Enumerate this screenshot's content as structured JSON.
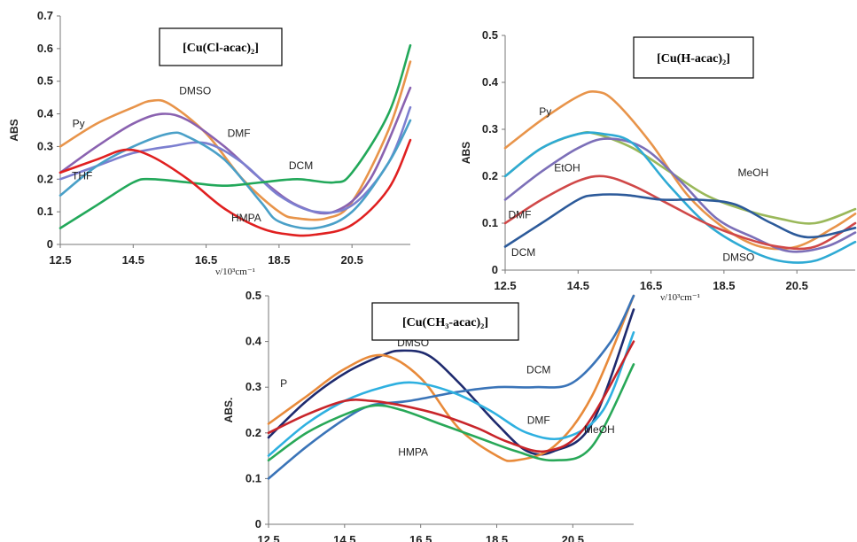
{
  "chart_data": [
    {
      "type": "line",
      "title": "[Cu(Cl-acac)₂]",
      "xlabel": "ν/10³cm⁻¹",
      "ylabel": "ABS",
      "xlim": [
        12.5,
        22.1
      ],
      "ylim": [
        0,
        0.7
      ],
      "xticks": [
        "12.5",
        "14.5",
        "16.5",
        "18.5",
        "20.5"
      ],
      "yticks": [
        "0",
        "0.1",
        "0.2",
        "0.3",
        "0.4",
        "0.5",
        "0.6",
        "0.7"
      ],
      "grid": false,
      "series": [
        {
          "name": "Py",
          "color": "#e8944a",
          "points": [
            [
              12.5,
              0.3
            ],
            [
              13.5,
              0.37
            ],
            [
              14.5,
              0.42
            ],
            [
              15.0,
              0.44
            ],
            [
              15.5,
              0.43
            ],
            [
              16.5,
              0.34
            ],
            [
              17.5,
              0.2
            ],
            [
              18.5,
              0.1
            ],
            [
              19.0,
              0.08
            ],
            [
              19.8,
              0.08
            ],
            [
              20.5,
              0.13
            ],
            [
              21.5,
              0.35
            ],
            [
              22.1,
              0.56
            ]
          ]
        },
        {
          "name": "DMSO",
          "color": "#8a62b0",
          "points": [
            [
              12.5,
              0.22
            ],
            [
              13.5,
              0.3
            ],
            [
              14.5,
              0.37
            ],
            [
              15.3,
              0.4
            ],
            [
              16.0,
              0.38
            ],
            [
              17.0,
              0.3
            ],
            [
              18.0,
              0.2
            ],
            [
              19.0,
              0.12
            ],
            [
              20.0,
              0.1
            ],
            [
              21.0,
              0.2
            ],
            [
              22.1,
              0.48
            ]
          ]
        },
        {
          "name": "DMF",
          "color": "#7c7fd0",
          "points": [
            [
              12.5,
              0.2
            ],
            [
              13.5,
              0.24
            ],
            [
              14.5,
              0.28
            ],
            [
              15.5,
              0.3
            ],
            [
              16.5,
              0.31
            ],
            [
              17.5,
              0.25
            ],
            [
              18.5,
              0.15
            ],
            [
              19.5,
              0.1
            ],
            [
              20.5,
              0.12
            ],
            [
              21.5,
              0.25
            ],
            [
              22.1,
              0.42
            ]
          ]
        },
        {
          "name": "THF",
          "color": "#4aa0c8",
          "points": [
            [
              12.5,
              0.15
            ],
            [
              13.5,
              0.24
            ],
            [
              14.5,
              0.3
            ],
            [
              15.5,
              0.34
            ],
            [
              16.0,
              0.33
            ],
            [
              17.0,
              0.26
            ],
            [
              18.0,
              0.13
            ],
            [
              18.5,
              0.07
            ],
            [
              19.5,
              0.05
            ],
            [
              20.5,
              0.1
            ],
            [
              21.5,
              0.25
            ],
            [
              22.1,
              0.38
            ]
          ]
        },
        {
          "name": "DCM",
          "color": "#22a85a",
          "points": [
            [
              12.5,
              0.05
            ],
            [
              13.5,
              0.12
            ],
            [
              14.5,
              0.19
            ],
            [
              15.0,
              0.2
            ],
            [
              16.0,
              0.19
            ],
            [
              17.0,
              0.18
            ],
            [
              18.0,
              0.19
            ],
            [
              19.0,
              0.2
            ],
            [
              20.0,
              0.19
            ],
            [
              20.5,
              0.22
            ],
            [
              21.5,
              0.4
            ],
            [
              22.1,
              0.61
            ]
          ]
        },
        {
          "name": "HMPA",
          "color": "#e02020",
          "points": [
            [
              12.5,
              0.22
            ],
            [
              13.5,
              0.26
            ],
            [
              14.3,
              0.29
            ],
            [
              15.0,
              0.27
            ],
            [
              16.0,
              0.2
            ],
            [
              17.0,
              0.11
            ],
            [
              18.0,
              0.05
            ],
            [
              18.8,
              0.03
            ],
            [
              19.5,
              0.03
            ],
            [
              20.5,
              0.06
            ],
            [
              21.5,
              0.17
            ],
            [
              22.1,
              0.32
            ]
          ]
        }
      ],
      "annotations": [
        {
          "text": "Py",
          "x": 13.0,
          "y": 0.36
        },
        {
          "text": "DMSO",
          "x": 16.2,
          "y": 0.46
        },
        {
          "text": "DMF",
          "x": 17.4,
          "y": 0.33
        },
        {
          "text": "THF",
          "x": 13.1,
          "y": 0.2
        },
        {
          "text": "DCM",
          "x": 19.1,
          "y": 0.23
        },
        {
          "text": "HMPA",
          "x": 17.6,
          "y": 0.07
        }
      ]
    },
    {
      "type": "line",
      "title": "[Cu(H-acac)₂]",
      "xlabel": "ν/10³cm⁻¹",
      "ylabel": "ABS",
      "xlim": [
        12.5,
        22.1
      ],
      "ylim": [
        0,
        0.5
      ],
      "xticks": [
        "12.5",
        "14.5",
        "16.5",
        "18.5",
        "20.5"
      ],
      "yticks": [
        "0",
        "0.1",
        "0.2",
        "0.3",
        "0.4",
        "0.5"
      ],
      "grid": false,
      "series": [
        {
          "name": "Py",
          "color": "#e8944a",
          "points": [
            [
              12.5,
              0.26
            ],
            [
              13.5,
              0.32
            ],
            [
              14.5,
              0.37
            ],
            [
              15.0,
              0.38
            ],
            [
              15.5,
              0.36
            ],
            [
              16.5,
              0.27
            ],
            [
              17.5,
              0.16
            ],
            [
              18.5,
              0.09
            ],
            [
              19.5,
              0.05
            ],
            [
              20.5,
              0.05
            ],
            [
              21.5,
              0.09
            ],
            [
              22.1,
              0.12
            ]
          ]
        },
        {
          "name": "MeOH",
          "color": "#9ab85a",
          "points": [
            [
              12.5,
              0.2
            ],
            [
              13.5,
              0.26
            ],
            [
              14.5,
              0.29
            ],
            [
              15.0,
              0.29
            ],
            [
              16.0,
              0.26
            ],
            [
              17.0,
              0.21
            ],
            [
              18.0,
              0.16
            ],
            [
              19.0,
              0.13
            ],
            [
              20.0,
              0.11
            ],
            [
              21.0,
              0.1
            ],
            [
              22.1,
              0.13
            ]
          ]
        },
        {
          "name": "DMF",
          "color": "#7c6fb8",
          "points": [
            [
              12.5,
              0.15
            ],
            [
              13.5,
              0.21
            ],
            [
              14.5,
              0.26
            ],
            [
              15.3,
              0.28
            ],
            [
              16.3,
              0.26
            ],
            [
              17.3,
              0.19
            ],
            [
              18.3,
              0.11
            ],
            [
              19.3,
              0.07
            ],
            [
              20.3,
              0.04
            ],
            [
              21.3,
              0.05
            ],
            [
              22.1,
              0.08
            ]
          ]
        },
        {
          "name": "DMSO",
          "color": "#2eaad4",
          "points": [
            [
              12.5,
              0.2
            ],
            [
              13.5,
              0.26
            ],
            [
              14.5,
              0.29
            ],
            [
              15.2,
              0.29
            ],
            [
              16.0,
              0.27
            ],
            [
              17.0,
              0.18
            ],
            [
              18.0,
              0.1
            ],
            [
              19.0,
              0.05
            ],
            [
              20.0,
              0.02
            ],
            [
              21.0,
              0.02
            ],
            [
              22.1,
              0.06
            ]
          ]
        },
        {
          "name": "EtOH",
          "color": "#d04848",
          "points": [
            [
              12.5,
              0.1
            ],
            [
              13.5,
              0.15
            ],
            [
              14.5,
              0.19
            ],
            [
              15.2,
              0.2
            ],
            [
              16.0,
              0.18
            ],
            [
              17.0,
              0.14
            ],
            [
              18.0,
              0.1
            ],
            [
              19.0,
              0.07
            ],
            [
              20.0,
              0.05
            ],
            [
              21.0,
              0.05
            ],
            [
              22.1,
              0.1
            ]
          ]
        },
        {
          "name": "DCM",
          "color": "#2c5a9a",
          "points": [
            [
              12.5,
              0.05
            ],
            [
              13.5,
              0.1
            ],
            [
              14.5,
              0.15
            ],
            [
              15.0,
              0.16
            ],
            [
              15.8,
              0.16
            ],
            [
              16.8,
              0.15
            ],
            [
              17.8,
              0.15
            ],
            [
              18.8,
              0.14
            ],
            [
              19.8,
              0.1
            ],
            [
              20.8,
              0.07
            ],
            [
              22.1,
              0.09
            ]
          ]
        }
      ],
      "annotations": [
        {
          "text": "Py",
          "x": 13.6,
          "y": 0.33
        },
        {
          "text": "MeOH",
          "x": 19.3,
          "y": 0.2
        },
        {
          "text": "DMF",
          "x": 12.9,
          "y": 0.11
        },
        {
          "text": "EtOH",
          "x": 14.2,
          "y": 0.21
        },
        {
          "text": "DCM",
          "x": 13.0,
          "y": 0.03
        },
        {
          "text": "DMSO",
          "x": 18.9,
          "y": 0.02
        }
      ]
    },
    {
      "type": "line",
      "title": "[Cu(CH₃-acac)₂]",
      "xlabel": "ν/10³cm⁻¹",
      "ylabel": "ABS.",
      "xlim": [
        12.5,
        22.1
      ],
      "ylim": [
        0,
        0.5
      ],
      "xticks": [
        "12.5",
        "14.5",
        "16.5",
        "18.5",
        "20.5"
      ],
      "yticks": [
        "0",
        "0.1",
        "0.2",
        "0.3",
        "0.4",
        "0.5"
      ],
      "grid": false,
      "series": [
        {
          "name": "DMSO",
          "color": "#1e2a6e",
          "points": [
            [
              12.5,
              0.19
            ],
            [
              13.5,
              0.27
            ],
            [
              14.5,
              0.33
            ],
            [
              15.5,
              0.37
            ],
            [
              16.0,
              0.38
            ],
            [
              16.7,
              0.37
            ],
            [
              17.5,
              0.31
            ],
            [
              18.5,
              0.22
            ],
            [
              19.3,
              0.16
            ],
            [
              20.0,
              0.16
            ],
            [
              21.0,
              0.22
            ],
            [
              22.1,
              0.47
            ]
          ]
        },
        {
          "name": "Py",
          "color": "#e88a3a",
          "points": [
            [
              12.5,
              0.22
            ],
            [
              13.5,
              0.28
            ],
            [
              14.5,
              0.34
            ],
            [
              15.5,
              0.37
            ],
            [
              16.5,
              0.32
            ],
            [
              17.5,
              0.21
            ],
            [
              18.5,
              0.15
            ],
            [
              19.0,
              0.14
            ],
            [
              20.0,
              0.17
            ],
            [
              21.0,
              0.28
            ],
            [
              22.1,
              0.5
            ]
          ]
        },
        {
          "name": "DCM",
          "color": "#3a74b8",
          "points": [
            [
              12.5,
              0.1
            ],
            [
              13.5,
              0.17
            ],
            [
              14.5,
              0.23
            ],
            [
              15.2,
              0.26
            ],
            [
              16.2,
              0.27
            ],
            [
              17.5,
              0.29
            ],
            [
              18.5,
              0.3
            ],
            [
              19.5,
              0.3
            ],
            [
              20.5,
              0.31
            ],
            [
              21.5,
              0.4
            ],
            [
              22.1,
              0.5
            ]
          ]
        },
        {
          "name": "DMF",
          "color": "#2eb0e0",
          "points": [
            [
              12.5,
              0.15
            ],
            [
              13.5,
              0.22
            ],
            [
              14.5,
              0.27
            ],
            [
              15.5,
              0.3
            ],
            [
              16.3,
              0.31
            ],
            [
              17.3,
              0.29
            ],
            [
              18.3,
              0.25
            ],
            [
              19.3,
              0.2
            ],
            [
              20.3,
              0.19
            ],
            [
              21.3,
              0.25
            ],
            [
              22.1,
              0.42
            ]
          ]
        },
        {
          "name": "HMPA",
          "color": "#c8252a",
          "points": [
            [
              12.5,
              0.2
            ],
            [
              13.5,
              0.24
            ],
            [
              14.5,
              0.27
            ],
            [
              15.2,
              0.27
            ],
            [
              16.0,
              0.26
            ],
            [
              17.0,
              0.24
            ],
            [
              18.0,
              0.21
            ],
            [
              18.8,
              0.18
            ],
            [
              19.8,
              0.16
            ],
            [
              20.8,
              0.21
            ],
            [
              22.1,
              0.4
            ]
          ]
        },
        {
          "name": "MeOH",
          "color": "#28a858",
          "points": [
            [
              12.5,
              0.14
            ],
            [
              13.5,
              0.2
            ],
            [
              14.5,
              0.24
            ],
            [
              15.3,
              0.26
            ],
            [
              16.0,
              0.25
            ],
            [
              17.0,
              0.22
            ],
            [
              18.0,
              0.19
            ],
            [
              19.0,
              0.16
            ],
            [
              20.0,
              0.14
            ],
            [
              21.0,
              0.17
            ],
            [
              22.1,
              0.35
            ]
          ]
        }
      ],
      "annotations": [
        {
          "text": "P",
          "x": 12.9,
          "y": 0.3
        },
        {
          "text": "DMSO",
          "x": 16.3,
          "y": 0.39
        },
        {
          "text": "DCM",
          "x": 19.6,
          "y": 0.33
        },
        {
          "text": "DMF",
          "x": 19.6,
          "y": 0.22
        },
        {
          "text": "HMPA",
          "x": 16.3,
          "y": 0.15
        },
        {
          "text": "MeOH",
          "x": 21.2,
          "y": 0.2
        }
      ]
    }
  ]
}
